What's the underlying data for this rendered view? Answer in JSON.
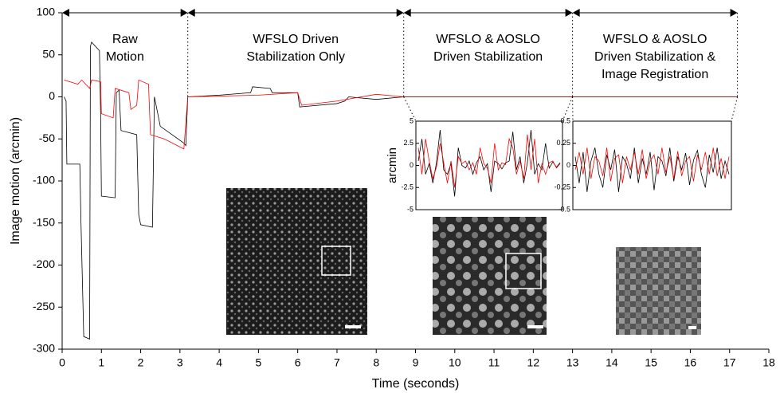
{
  "chart_data": [
    {
      "type": "line",
      "xlabel": "Time (seconds)",
      "ylabel": "Image motion (arcmin)",
      "xlim": [
        0,
        18
      ],
      "xticks": [
        0,
        1,
        2,
        3,
        4,
        5,
        6,
        7,
        8,
        9,
        10,
        11,
        12,
        13,
        14,
        15,
        16,
        17,
        18
      ],
      "ylim": [
        -300,
        100
      ],
      "yticks": [
        100,
        50,
        0,
        -50,
        -100,
        -150,
        -200,
        -250,
        -300
      ],
      "series": [
        {
          "color": "#000000",
          "x": [
            0.05,
            0.1,
            0.12,
            0.45,
            0.48,
            0.55,
            0.7,
            0.72,
            0.75,
            0.95,
            0.98,
            1.0,
            1.35,
            1.38,
            1.45,
            1.5,
            1.9,
            1.95,
            2.0,
            2.3,
            2.35,
            2.5,
            2.8,
            3.1,
            3.15,
            3.2,
            4.0,
            4.8,
            4.85,
            5.3,
            5.35,
            6.0,
            6.05,
            7.0,
            7.2,
            7.3,
            8.0,
            8.7,
            10,
            13,
            17.2
          ],
          "values": [
            0,
            -5,
            -80,
            -80,
            -150,
            -285,
            -288,
            60,
            65,
            55,
            -20,
            -118,
            -120,
            5,
            8,
            -40,
            -45,
            -140,
            -152,
            -155,
            0,
            -35,
            -45,
            -55,
            -58,
            0,
            2,
            5,
            12,
            10,
            5,
            5,
            -12,
            -8,
            -5,
            0,
            -3,
            0,
            0,
            0,
            0
          ]
        },
        {
          "color": "#ff0000",
          "x": [
            0.05,
            0.4,
            0.5,
            0.7,
            0.75,
            0.98,
            1.0,
            1.3,
            1.35,
            1.7,
            1.75,
            1.9,
            1.95,
            2.2,
            2.25,
            2.6,
            3.1,
            3.2,
            5.0,
            6.0,
            6.1,
            7.0,
            8.0,
            8.7,
            13,
            17.2
          ],
          "values": [
            20,
            15,
            20,
            10,
            20,
            18,
            -20,
            -25,
            10,
            5,
            -15,
            -10,
            20,
            15,
            -45,
            -50,
            -62,
            0,
            2,
            5,
            -10,
            -5,
            3,
            0,
            0,
            0
          ]
        }
      ],
      "annotations": [
        {
          "x_start": 0,
          "x_end": 3.2,
          "lines": [
            "Raw",
            "Motion"
          ]
        },
        {
          "x_start": 3.2,
          "x_end": 8.7,
          "lines": [
            "WFSLO Driven",
            "Stabilization Only"
          ]
        },
        {
          "x_start": 8.7,
          "x_end": 13,
          "lines": [
            "WFSLO & AOSLO",
            "Driven Stabilization"
          ]
        },
        {
          "x_start": 13,
          "x_end": 17.2,
          "lines": [
            "WFSLO & AOSLO",
            "Driven Stabilization &",
            "Image Registration"
          ]
        }
      ]
    },
    {
      "type": "line",
      "ylabel": "arcmin",
      "ylim": [
        -5,
        5
      ],
      "yticks": [
        -5,
        -2.5,
        0,
        2.5,
        5
      ],
      "series": [
        {
          "color": "#000000",
          "values": [
            0.5,
            3,
            -1,
            0.2,
            -2,
            0.3,
            4,
            -0.5,
            -1,
            0.2,
            -3.5,
            2,
            0,
            -0.3,
            0.5,
            -1,
            0.3,
            1,
            -0.5,
            0.2,
            -3,
            0.5,
            0.2,
            -0.4,
            0.3,
            0.5,
            3.8,
            -0.5,
            1,
            -2,
            0.3,
            4,
            -1,
            0.2,
            -0.5,
            2.5,
            -0.3,
            0.4,
            -0.2,
            0.3
          ]
        },
        {
          "color": "#ff0000",
          "values": [
            2,
            -1,
            3,
            0.5,
            -1.5,
            -0.2,
            2.5,
            0.3,
            -2,
            0.5,
            -2.5,
            1,
            0.2,
            0.5,
            -0.5,
            0.3,
            -1,
            2,
            0.2,
            -0.3,
            -2,
            2.5,
            -0.5,
            0.3,
            0.1,
            3,
            2,
            -1,
            0.5,
            -1.5,
            3.5,
            -0.5,
            3,
            -2,
            0.2,
            -1,
            0.3,
            0.5,
            -0.3,
            0.2
          ]
        }
      ]
    },
    {
      "type": "line",
      "ylim": [
        -0.5,
        0.5
      ],
      "yticks": [
        -0.5,
        -0.25,
        0,
        0.25,
        0.5
      ],
      "series": [
        {
          "color": "#000000",
          "values": [
            0.1,
            -0.2,
            0.15,
            -0.3,
            0.05,
            0.2,
            -0.1,
            -0.25,
            0.12,
            -0.05,
            0.18,
            -0.3,
            0.1,
            0.02,
            -0.15,
            0.2,
            -0.2,
            0.08,
            -0.1,
            0.15,
            -0.28,
            0.1,
            0.05,
            -0.12,
            0.2,
            -0.18,
            0.1,
            -0.05,
            0.14,
            -0.22,
            0.06,
            0.17,
            -0.1,
            -0.25,
            0.12,
            -0.08,
            0.2,
            -0.15,
            0.05,
            -0.1
          ]
        },
        {
          "color": "#ff0000",
          "values": [
            -0.05,
            0.15,
            -0.1,
            0.2,
            -0.15,
            0.1,
            0.05,
            -0.12,
            0.2,
            -0.18,
            0.08,
            0.12,
            -0.2,
            0.1,
            -0.05,
            0.15,
            -0.1,
            0.18,
            -0.15,
            0.05,
            0.12,
            -0.1,
            0.2,
            -0.08,
            0.1,
            -0.15,
            0.16,
            -0.12,
            0.05,
            0.1,
            -0.18,
            0.12,
            -0.05,
            0.15,
            -0.1,
            0.2,
            -0.12,
            0.08,
            -0.15,
            0.1
          ]
        }
      ]
    }
  ]
}
